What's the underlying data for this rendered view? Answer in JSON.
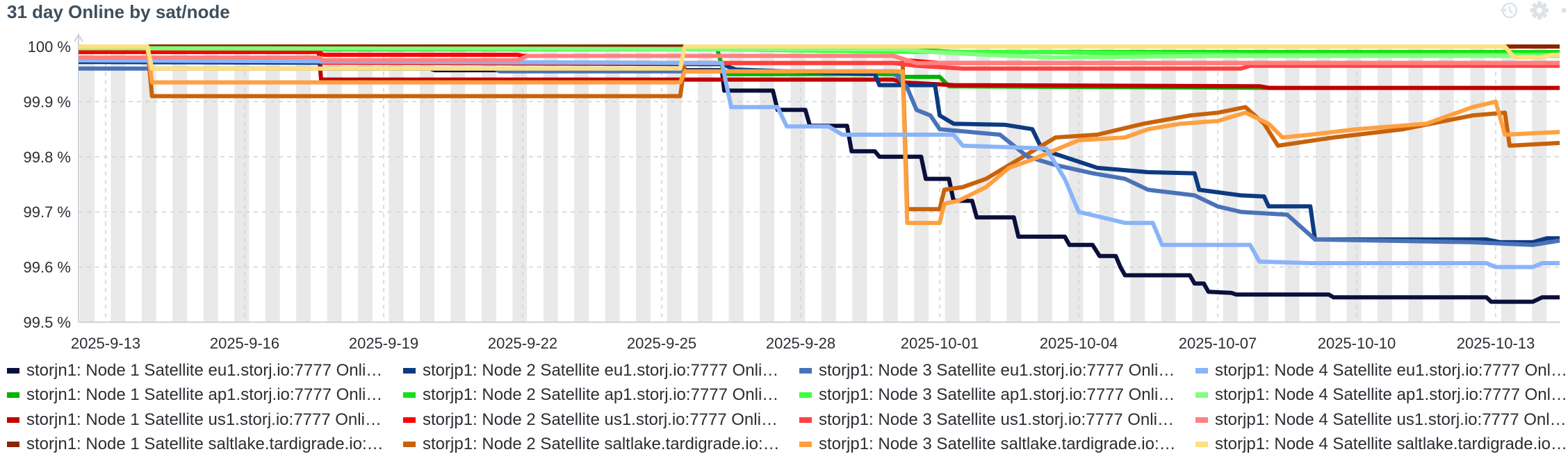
{
  "panel": {
    "title": "31 day Online by sat/node",
    "toolbar_icons": [
      "history-icon",
      "gear-icon",
      "more-icon"
    ]
  },
  "chart_data": {
    "type": "line",
    "title": "31 day Online by sat/node",
    "xlabel": "",
    "ylabel": "",
    "x_unit": "days since 2025-09-13",
    "xlim": [
      -0.585,
      31.38
    ],
    "ylim": [
      99.5,
      100
    ],
    "y_ticks": [
      {
        "value": 100,
        "label": "100 %"
      },
      {
        "value": 99.9,
        "label": "99.9 %"
      },
      {
        "value": 99.8,
        "label": "99.8 %"
      },
      {
        "value": 99.7,
        "label": "99.7 %"
      },
      {
        "value": 99.6,
        "label": "99.6 %"
      },
      {
        "value": 99.5,
        "label": "99.5 %"
      }
    ],
    "x_ticks": [
      {
        "value": 0,
        "label": "2025-9-13"
      },
      {
        "value": 3,
        "label": "2025-9-16"
      },
      {
        "value": 6,
        "label": "2025-9-19"
      },
      {
        "value": 9,
        "label": "2025-9-22"
      },
      {
        "value": 12,
        "label": "2025-9-25"
      },
      {
        "value": 15,
        "label": "2025-9-28"
      },
      {
        "value": 18,
        "label": "2025-10-01"
      },
      {
        "value": 21,
        "label": "2025-10-04"
      },
      {
        "value": 24,
        "label": "2025-10-07"
      },
      {
        "value": 27,
        "label": "2025-10-10"
      },
      {
        "value": 30,
        "label": "2025-10-13"
      }
    ],
    "grid": true,
    "legend_position": "bottom",
    "series": [
      {
        "name": "storjn1: Node 1 Satellite eu1.storj.io:7777 Onli…",
        "color": "#0a0f3c",
        "points": [
          [
            -0.585,
            99.975
          ],
          [
            4.6,
            99.975
          ],
          [
            4.65,
            99.96
          ],
          [
            7.0,
            99.96
          ],
          [
            7.1,
            99.957
          ],
          [
            13.3,
            99.957
          ],
          [
            13.35,
            99.92
          ],
          [
            14.4,
            99.92
          ],
          [
            14.5,
            99.885
          ],
          [
            15.1,
            99.885
          ],
          [
            15.2,
            99.856
          ],
          [
            16.0,
            99.856
          ],
          [
            16.1,
            99.81
          ],
          [
            16.6,
            99.81
          ],
          [
            16.7,
            99.8
          ],
          [
            17.6,
            99.8
          ],
          [
            17.7,
            99.76
          ],
          [
            18.2,
            99.76
          ],
          [
            18.3,
            99.72
          ],
          [
            18.7,
            99.72
          ],
          [
            18.8,
            99.69
          ],
          [
            19.6,
            99.69
          ],
          [
            19.7,
            99.655
          ],
          [
            20.7,
            99.655
          ],
          [
            20.8,
            99.64
          ],
          [
            21.3,
            99.64
          ],
          [
            21.45,
            99.62
          ],
          [
            21.8,
            99.62
          ],
          [
            21.9,
            99.6
          ],
          [
            22.0,
            99.585
          ],
          [
            23.4,
            99.585
          ],
          [
            23.5,
            99.57
          ],
          [
            23.7,
            99.57
          ],
          [
            23.8,
            99.555
          ],
          [
            24.3,
            99.553
          ],
          [
            24.4,
            99.55
          ],
          [
            26.4,
            99.55
          ],
          [
            26.5,
            99.545
          ],
          [
            29.8,
            99.545
          ],
          [
            29.9,
            99.537
          ],
          [
            30.8,
            99.537
          ],
          [
            31.0,
            99.545
          ],
          [
            31.38,
            99.545
          ]
        ]
      },
      {
        "name": "storjn1: Node 1 Satellite ap1.storj.io:7777 Onli…",
        "color": "#00b300",
        "points": [
          [
            -0.585,
            99.995
          ],
          [
            13.2,
            99.995
          ],
          [
            13.35,
            99.95
          ],
          [
            17.0,
            99.95
          ],
          [
            17.2,
            99.945
          ],
          [
            18.0,
            99.945
          ],
          [
            18.2,
            99.928
          ],
          [
            25.3,
            99.925
          ]
        ]
      },
      {
        "name": "storjn1: Node 1 Satellite us1.storj.io:7777 Onli…",
        "color": "#c00000",
        "points": [
          [
            -0.585,
            99.99
          ],
          [
            4.6,
            99.99
          ],
          [
            4.65,
            99.94
          ],
          [
            17.0,
            99.94
          ],
          [
            17.2,
            99.935
          ],
          [
            18.3,
            99.93
          ],
          [
            24.9,
            99.928
          ],
          [
            25.1,
            99.925
          ],
          [
            31.38,
            99.925
          ]
        ]
      },
      {
        "name": "storjn1: Node 1 Satellite saltlake.tardigrade.io:…",
        "color": "#8b2500",
        "points": [
          [
            0.9,
            100
          ],
          [
            31.38,
            100
          ]
        ]
      },
      {
        "name": "storjp1: Node 2 Satellite eu1.storj.io:7777 Onli…",
        "color": "#0d3a80",
        "points": [
          [
            -0.585,
            99.972
          ],
          [
            13.3,
            99.968
          ],
          [
            13.6,
            99.958
          ],
          [
            15.4,
            99.953
          ],
          [
            16.6,
            99.95
          ],
          [
            16.7,
            99.93
          ],
          [
            17.9,
            99.93
          ],
          [
            18.0,
            99.875
          ],
          [
            18.3,
            99.86
          ],
          [
            19.4,
            99.858
          ],
          [
            20.0,
            99.85
          ],
          [
            20.2,
            99.815
          ],
          [
            20.5,
            99.805
          ],
          [
            21.4,
            99.78
          ],
          [
            22.5,
            99.772
          ],
          [
            23.5,
            99.77
          ],
          [
            23.6,
            99.74
          ],
          [
            24.5,
            99.73
          ],
          [
            25.0,
            99.728
          ],
          [
            25.1,
            99.71
          ],
          [
            26.0,
            99.71
          ],
          [
            26.1,
            99.65
          ],
          [
            29.8,
            99.65
          ],
          [
            30.1,
            99.645
          ],
          [
            30.8,
            99.645
          ],
          [
            31.1,
            99.652
          ],
          [
            31.38,
            99.652
          ]
        ]
      },
      {
        "name": "storjp1: Node 2 Satellite ap1.storj.io:7777 Onli…",
        "color": "#16e016",
        "points": [
          [
            -0.585,
            99.997
          ],
          [
            17.5,
            99.995
          ],
          [
            18.3,
            99.99
          ],
          [
            26.0,
            99.99
          ],
          [
            31.38,
            99.99
          ]
        ]
      },
      {
        "name": "storjp1: Node 2 Satellite us1.storj.io:7777 Onli…",
        "color": "#ff0000",
        "points": [
          [
            -0.585,
            99.99
          ],
          [
            4.6,
            99.99
          ],
          [
            4.7,
            99.985
          ],
          [
            8.9,
            99.985
          ],
          [
            9.0,
            99.983
          ],
          [
            17.0,
            99.983
          ],
          [
            17.3,
            99.975
          ],
          [
            18.0,
            99.97
          ],
          [
            31.38,
            99.97
          ]
        ]
      },
      {
        "name": "storjp1: Node 2 Satellite saltlake.tardigrade.io:…",
        "color": "#c8620a",
        "points": [
          [
            -0.585,
            100
          ],
          [
            0.9,
            100
          ],
          [
            1.0,
            99.91
          ],
          [
            12.4,
            99.91
          ],
          [
            12.5,
            99.97
          ],
          [
            17.2,
            99.97
          ],
          [
            17.3,
            99.705
          ],
          [
            18.0,
            99.705
          ],
          [
            18.1,
            99.74
          ],
          [
            18.5,
            99.745
          ],
          [
            19.0,
            99.76
          ],
          [
            19.4,
            99.78
          ],
          [
            20.0,
            99.81
          ],
          [
            20.5,
            99.835
          ],
          [
            21.4,
            99.84
          ],
          [
            22.4,
            99.86
          ],
          [
            23.4,
            99.875
          ],
          [
            24.0,
            99.88
          ],
          [
            24.6,
            99.89
          ],
          [
            25.0,
            99.86
          ],
          [
            25.3,
            99.82
          ],
          [
            26.5,
            99.835
          ],
          [
            28.0,
            99.85
          ],
          [
            29.5,
            99.875
          ],
          [
            30.2,
            99.88
          ],
          [
            30.3,
            99.82
          ],
          [
            31.38,
            99.825
          ]
        ]
      },
      {
        "name": "storjp1: Node 3 Satellite eu1.storj.io:7777 Onli…",
        "color": "#4a72b8",
        "points": [
          [
            -0.585,
            99.96
          ],
          [
            8.4,
            99.96
          ],
          [
            8.5,
            99.955
          ],
          [
            17.0,
            99.955
          ],
          [
            17.3,
            99.925
          ],
          [
            17.5,
            99.885
          ],
          [
            17.8,
            99.875
          ],
          [
            18.0,
            99.85
          ],
          [
            19.3,
            99.84
          ],
          [
            19.9,
            99.8
          ],
          [
            20.5,
            99.785
          ],
          [
            21.3,
            99.77
          ],
          [
            22.0,
            99.76
          ],
          [
            22.5,
            99.74
          ],
          [
            23.5,
            99.73
          ],
          [
            24.0,
            99.71
          ],
          [
            24.5,
            99.7
          ],
          [
            25.5,
            99.695
          ],
          [
            26.1,
            99.65
          ],
          [
            29.5,
            99.645
          ],
          [
            30.8,
            99.64
          ],
          [
            31.38,
            99.648
          ]
        ]
      },
      {
        "name": "storjp1: Node 3 Satellite ap1.storj.io:7777 Onli…",
        "color": "#3dff3d",
        "points": [
          [
            -0.585,
            99.997
          ],
          [
            13.3,
            99.995
          ],
          [
            17.5,
            99.99
          ],
          [
            20.0,
            99.99
          ],
          [
            24.8,
            99.985
          ],
          [
            31.38,
            99.985
          ]
        ]
      },
      {
        "name": "storjp1: Node 3 Satellite us1.storj.io:7777 Onli…",
        "color": "#ff4040",
        "points": [
          [
            -0.585,
            99.975
          ],
          [
            4.6,
            99.975
          ],
          [
            4.7,
            99.97
          ],
          [
            17.0,
            99.97
          ],
          [
            17.5,
            99.965
          ],
          [
            18.5,
            99.96
          ],
          [
            24.5,
            99.96
          ],
          [
            24.7,
            99.965
          ],
          [
            31.38,
            99.965
          ]
        ]
      },
      {
        "name": "storjp1: Node 3 Satellite saltlake.tardigrade.io:…",
        "color": "#ffa040",
        "points": [
          [
            -0.585,
            100
          ],
          [
            0.9,
            100
          ],
          [
            1.0,
            99.935
          ],
          [
            12.4,
            99.935
          ],
          [
            12.5,
            99.955
          ],
          [
            17.2,
            99.955
          ],
          [
            17.3,
            99.68
          ],
          [
            18.0,
            99.68
          ],
          [
            18.1,
            99.715
          ],
          [
            18.4,
            99.72
          ],
          [
            19.0,
            99.745
          ],
          [
            19.5,
            99.78
          ],
          [
            20.0,
            99.795
          ],
          [
            21.0,
            99.83
          ],
          [
            22.0,
            99.835
          ],
          [
            22.5,
            99.85
          ],
          [
            23.2,
            99.86
          ],
          [
            24.0,
            99.865
          ],
          [
            24.6,
            99.88
          ],
          [
            25.1,
            99.86
          ],
          [
            25.4,
            99.835
          ],
          [
            26.0,
            99.84
          ],
          [
            27.0,
            99.85
          ],
          [
            28.5,
            99.86
          ],
          [
            29.5,
            99.89
          ],
          [
            30.0,
            99.9
          ],
          [
            30.2,
            99.84
          ],
          [
            31.38,
            99.845
          ]
        ]
      },
      {
        "name": "storjp1: Node 4 Satellite eu1.storj.io:7777 Onli…",
        "color": "#8ab4f8",
        "points": [
          [
            -0.585,
            99.975
          ],
          [
            13.3,
            99.97
          ],
          [
            13.5,
            99.89
          ],
          [
            14.5,
            99.89
          ],
          [
            14.7,
            99.855
          ],
          [
            15.6,
            99.855
          ],
          [
            15.9,
            99.84
          ],
          [
            18.3,
            99.84
          ],
          [
            18.5,
            99.82
          ],
          [
            20.3,
            99.815
          ],
          [
            20.7,
            99.76
          ],
          [
            21.0,
            99.7
          ],
          [
            21.5,
            99.69
          ],
          [
            22.0,
            99.68
          ],
          [
            22.6,
            99.68
          ],
          [
            22.8,
            99.64
          ],
          [
            24.7,
            99.64
          ],
          [
            24.9,
            99.61
          ],
          [
            26.0,
            99.607
          ],
          [
            29.8,
            99.607
          ],
          [
            30.0,
            99.6
          ],
          [
            30.8,
            99.6
          ],
          [
            31.0,
            99.607
          ],
          [
            31.38,
            99.607
          ]
        ]
      },
      {
        "name": "storjp1: Node 4 Satellite ap1.storj.io:7777 Onli…",
        "color": "#80ff80",
        "points": [
          [
            -0.585,
            99.997
          ],
          [
            17.2,
            99.995
          ],
          [
            17.8,
            99.99
          ],
          [
            19.0,
            99.985
          ],
          [
            20.5,
            99.98
          ],
          [
            24.0,
            99.983
          ],
          [
            31.38,
            99.983
          ]
        ]
      },
      {
        "name": "storjp1: Node 4 Satellite us1.storj.io:7777 Onli…",
        "color": "#ff8080",
        "points": [
          [
            -0.585,
            99.98
          ],
          [
            4.6,
            99.98
          ],
          [
            4.7,
            99.975
          ],
          [
            8.9,
            99.975
          ],
          [
            9.1,
            99.983
          ],
          [
            17.0,
            99.983
          ],
          [
            17.5,
            99.97
          ],
          [
            31.38,
            99.97
          ]
        ]
      },
      {
        "name": "storjp1: Node 4 Satellite saltlake.tardigrade.io:…",
        "color": "#ffe080",
        "points": [
          [
            -0.585,
            100
          ],
          [
            0.9,
            100
          ],
          [
            1.0,
            99.96
          ],
          [
            12.4,
            99.96
          ],
          [
            12.5,
            100
          ],
          [
            30.2,
            100
          ],
          [
            30.4,
            99.98
          ],
          [
            31.0,
            99.98
          ],
          [
            31.2,
            99.985
          ],
          [
            31.38,
            99.985
          ]
        ]
      }
    ]
  }
}
